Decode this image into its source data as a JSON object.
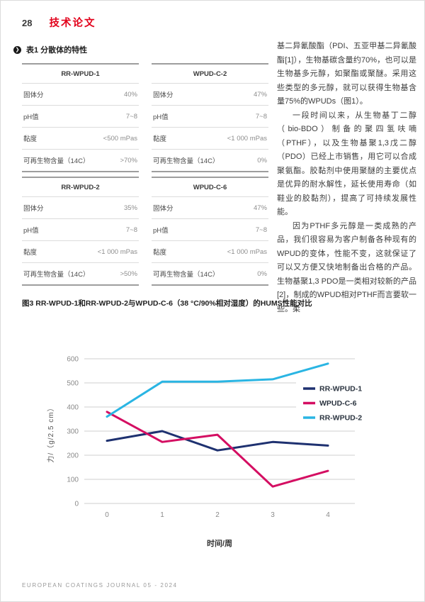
{
  "colors": {
    "accent_red": "#e2001a",
    "navy": "#1e3170",
    "magenta": "#d40e62",
    "cyan": "#2ab5e3",
    "grid": "#cfcfcf",
    "tick": "#8a8a8a"
  },
  "icons": {
    "bullet": "❯"
  },
  "header": {
    "page_number": "28",
    "section_title": "技术论文"
  },
  "table_block": {
    "caption": "表1 分散体的特性",
    "tables": [
      {
        "name": "RR-WPUD-1",
        "rows": [
          [
            "固体分",
            "40%"
          ],
          [
            "pH值",
            "7~8"
          ],
          [
            "黏度",
            "<500 mPas"
          ],
          [
            "可再生物含量（14C）",
            ">70%"
          ]
        ]
      },
      {
        "name": "WPUD-C-2",
        "rows": [
          [
            "固体分",
            "47%"
          ],
          [
            "pH值",
            "7~8"
          ],
          [
            "黏度",
            "<1 000 mPas"
          ],
          [
            "可再生物含量（14C）",
            "0%"
          ]
        ]
      },
      {
        "name": "RR-WPUD-2",
        "rows": [
          [
            "固体分",
            "35%"
          ],
          [
            "pH值",
            "7~8"
          ],
          [
            "黏度",
            "<1 000 mPas"
          ],
          [
            "可再生物含量（14C）",
            ">50%"
          ]
        ]
      },
      {
        "name": "WPUD-C-6",
        "rows": [
          [
            "固体分",
            "47%"
          ],
          [
            "pH值",
            "7~8"
          ],
          [
            "黏度",
            "<1 000 mPas"
          ],
          [
            "可再生物含量（14C）",
            "0%"
          ]
        ]
      }
    ]
  },
  "article": {
    "paragraphs": [
      {
        "indent": false,
        "text": "基二异氰酸酯（PDI、五亚甲基二异氰酸酯[1]），生物基碳含量约70%，也可以是生物基多元醇，如聚酯或聚醚。采用这些类型的多元醇，就可以获得生物基含量75%的WPUDs（图1）。"
      },
      {
        "indent": true,
        "text": "一段时间以来，从生物基丁二醇（bio-BDO）制备的聚四氢呋喃（PTHF），以及生物基聚1,3戊二醇（PDO）已经上市销售，用它可以合成聚氨酯。胶黏剂中使用聚醚的主要优点是优异的耐水解性，延长使用寿命（如鞋业的胶黏剂），提高了可持续发展性能。"
      },
      {
        "indent": true,
        "text": "因为PTHF多元醇是一类成熟的产品，我们很容易为客户制备各种现有的WPUD的变体，性能不变，这就保证了可以又方便又快地制备出合格的产品。生物基聚1,3 PDO是一类相对较新的产品[2]，制成的WPUD相对PTHF而言要软一些。柔"
      }
    ]
  },
  "figure": {
    "caption": "图3 RR-WPUD-1和RR-WPUD-2与WPUD-C-6（38 °C/90%相对湿度）的HUMS性能对比"
  },
  "chart_data": {
    "type": "line",
    "x": [
      0,
      1,
      2,
      3,
      4
    ],
    "series": [
      {
        "name": "RR-WPUD-1",
        "color": "#1e3170",
        "values": [
          260,
          300,
          220,
          255,
          240
        ]
      },
      {
        "name": "WPUD-C-6",
        "color": "#d40e62",
        "values": [
          380,
          255,
          285,
          70,
          135
        ]
      },
      {
        "name": "RR-WPUD-2",
        "color": "#2ab5e3",
        "values": [
          360,
          505,
          505,
          515,
          580
        ]
      }
    ],
    "xlabel": "时间/周",
    "ylabel": "力/（g/2.5 cm）",
    "ylim": [
      0,
      600
    ],
    "ytick_step": 100,
    "xticks": [
      "0",
      "1",
      "2",
      "3",
      "4"
    ],
    "grid": true,
    "legend_position": "right-inside"
  },
  "footer": {
    "text": "EUROPEAN COATINGS JOURNAL 05 - 2024"
  }
}
